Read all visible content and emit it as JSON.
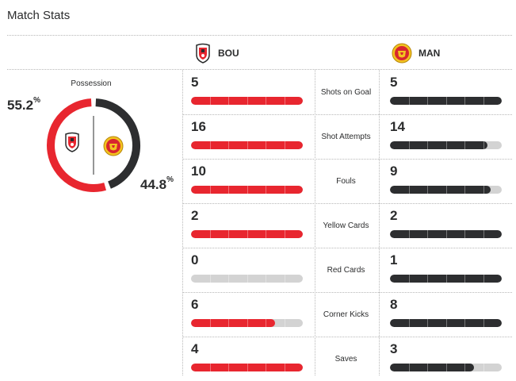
{
  "title": "Match Stats",
  "teams": {
    "home": {
      "abbr": "BOU",
      "color": "#e8262f"
    },
    "away": {
      "abbr": "MAN",
      "color": "#2d2e30"
    }
  },
  "possession": {
    "label": "Possession",
    "home": 55.2,
    "away": 44.8,
    "home_text": "55.2",
    "away_text": "44.8",
    "unit": "%"
  },
  "stats": [
    {
      "label": "Shots on Goal",
      "home": "5",
      "away": "5",
      "home_fill": 1.0,
      "away_fill": 1.0
    },
    {
      "label": "Shot Attempts",
      "home": "16",
      "away": "14",
      "home_fill": 1.0,
      "away_fill": 0.875
    },
    {
      "label": "Fouls",
      "home": "10",
      "away": "9",
      "home_fill": 1.0,
      "away_fill": 0.9
    },
    {
      "label": "Yellow Cards",
      "home": "2",
      "away": "2",
      "home_fill": 1.0,
      "away_fill": 1.0
    },
    {
      "label": "Red Cards",
      "home": "0",
      "away": "1",
      "home_fill": 0.0,
      "away_fill": 1.0
    },
    {
      "label": "Corner Kicks",
      "home": "6",
      "away": "8",
      "home_fill": 0.75,
      "away_fill": 1.0
    },
    {
      "label": "Saves",
      "home": "4",
      "away": "3",
      "home_fill": 1.0,
      "away_fill": 0.75
    }
  ]
}
